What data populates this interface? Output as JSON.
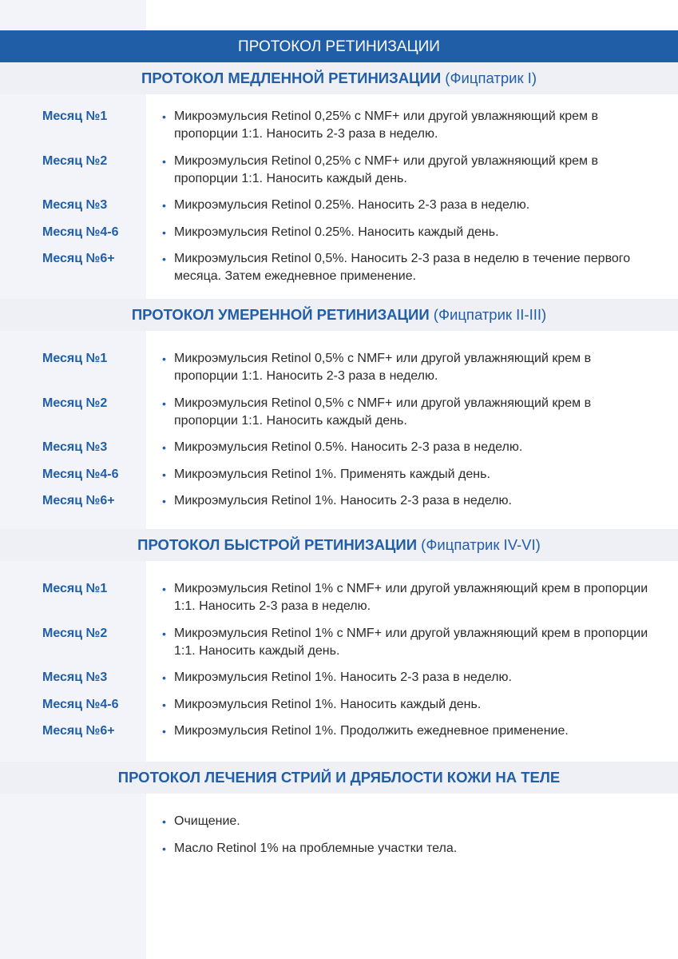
{
  "title": "ПРОТОКОЛ РЕТИНИЗАЦИИ",
  "colors": {
    "accent": "#215ea8",
    "band": "#eef0f5",
    "left_band": "#f3f4f9"
  },
  "sections": [
    {
      "heading": "ПРОТОКОЛ МЕДЛЕННОЙ РЕТИНИЗАЦИИ",
      "sub": "(Фицпатрик I)",
      "rows": [
        {
          "label": "Месяц №1",
          "text": "Микроэмульсия Retinol 0,25% с NMF+ или другой увлажняющий крем в пропорции 1:1. Наносить 2-3 раза в неделю."
        },
        {
          "label": "Месяц №2",
          "text": "Микроэмульсия Retinol 0,25% с NMF+ или другой увлажняющий крем в пропорции 1:1. Наносить каждый день."
        },
        {
          "label": "Месяц №3",
          "text": "Микроэмульсия Retinol 0.25%. Наносить 2-3 раза в неделю."
        },
        {
          "label": "Месяц №4-6",
          "text": "Микроэмульсия Retinol 0.25%. Наносить каждый день."
        },
        {
          "label": "Месяц №6+",
          "text": "Микроэмульсия Retinol 0,5%. Наносить 2-3 раза в неделю в течение первого месяца. Затем ежедневное применение."
        }
      ]
    },
    {
      "heading": "ПРОТОКОЛ УМЕРЕННОЙ РЕТИНИЗАЦИИ",
      "sub": "(Фицпатрик II-III)",
      "rows": [
        {
          "label": "Месяц №1",
          "text": "Микроэмульсия Retinol 0,5% с NMF+ или другой увлажняющий крем в пропорции 1:1. Наносить 2-3 раза в неделю."
        },
        {
          "label": "Месяц №2",
          "text": "Микроэмульсия Retinol 0,5% с NMF+ или другой увлажняющий крем в пропорции 1:1. Наносить каждый день."
        },
        {
          "label": "Месяц №3",
          "text": "Микроэмульсия Retinol 0.5%. Наносить 2-3 раза в неделю."
        },
        {
          "label": "Месяц №4-6",
          "text": "Микроэмульсия Retinol 1%. Применять каждый день."
        },
        {
          "label": "Месяц №6+",
          "text": "Микроэмульсия Retinol 1%. Наносить 2-3 раза в неделю."
        }
      ]
    },
    {
      "heading": "ПРОТОКОЛ БЫСТРОЙ РЕТИНИЗАЦИИ",
      "sub": "(Фицпатрик IV-VI)",
      "rows": [
        {
          "label": "Месяц №1",
          "text": "Микроэмульсия Retinol 1% с NMF+ или другой увлажняющий крем в пропорции 1:1. Наносить 2-3 раза в неделю."
        },
        {
          "label": "Месяц №2",
          "text": "Микроэмульсия Retinol 1% с NMF+ или другой увлажняющий крем в пропорции 1:1. Наносить каждый день."
        },
        {
          "label": "Месяц №3",
          "text": "Микроэмульсия Retinol 1%. Наносить 2-3 раза в неделю."
        },
        {
          "label": "Месяц №4-6",
          "text": "Микроэмульсия Retinol 1%. Наносить каждый день."
        },
        {
          "label": "Месяц №6+",
          "text": "Микроэмульсия Retinol 1%. Продолжить ежедневное применение."
        }
      ]
    },
    {
      "heading": "ПРОТОКОЛ ЛЕЧЕНИЯ СТРИЙ И ДРЯБЛОСТИ КОЖИ НА ТЕЛЕ",
      "sub": "",
      "rows": [
        {
          "label": "",
          "text": "Очищение."
        },
        {
          "label": "",
          "text": "Масло Retinol 1% на проблемные участки тела."
        }
      ]
    }
  ]
}
